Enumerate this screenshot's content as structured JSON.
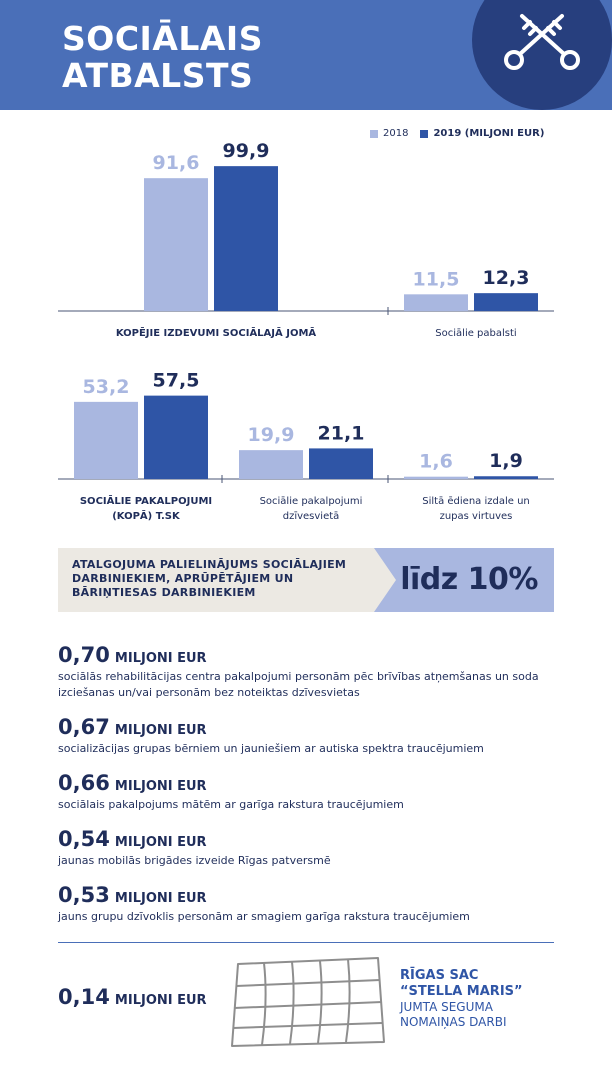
{
  "header": {
    "title_line1": "SOCIĀLAIS",
    "title_line2": "ATBALSTS",
    "logo_icon": "crossed-keys-icon"
  },
  "legend": {
    "series_a": "2018",
    "series_b": "2019 (MILJONI EUR)"
  },
  "colors": {
    "header": "#4a6fb8",
    "logo_circle": "#273f7e",
    "series_2018": "#a9b7e0",
    "series_2019": "#2f55a6",
    "text": "#1f2d5a"
  },
  "chart_data": {
    "type": "bar",
    "series": [
      {
        "name": "2018",
        "values": [
          91.6,
          11.5,
          53.2,
          19.9,
          1.6
        ]
      },
      {
        "name": "2019 (MILJONI EUR)",
        "values": [
          99.9,
          12.3,
          57.5,
          21.1,
          1.9
        ]
      }
    ],
    "categories": [
      "KOPĒJIE IZDEVUMI SOCIĀLAJĀ JOMĀ",
      "Sociālie pabalsti",
      "SOCIĀLIE PAKALPOJUMI (KOPĀ) T.SK",
      "Sociālie pakalpojumi dzīvesvietā",
      "Siltā ēdiena izdale un zupas virtuves"
    ],
    "value_labels_2018": [
      "91,6",
      "11,5",
      "53,2",
      "19,9",
      "1,6"
    ],
    "value_labels_2019": [
      "99,9",
      "12,3",
      "57,5",
      "21,1",
      "1,9"
    ],
    "category_lines": [
      [
        "KOPĒJIE IZDEVUMI SOCIĀLAJĀ JOMĀ"
      ],
      [
        "Sociālie pabalsti"
      ],
      [
        "SOCIĀLIE PAKALPOJUMI",
        "(KOPĀ) T.SK"
      ],
      [
        "Sociālie pakalpojumi",
        "dzīvesvietā"
      ],
      [
        "Siltā ēdiena izdale un",
        "zupas virtuves"
      ]
    ],
    "bold_categories": [
      true,
      false,
      true,
      false,
      false
    ]
  },
  "banner": {
    "text": "ATALGOJUMA PALIELINĀJUMS SOCIĀLAJIEM DARBINIEKIEM, APRŪPĒTĀJIEM UN BĀRIŅTIESAS DARBINIEKIEM",
    "value": "līdz 10%"
  },
  "items": [
    {
      "amount": "0,70",
      "unit": "MILJONI EUR",
      "description": "sociālās rehabilitācijas centra pakalpojumi personām pēc brīvības atņemšanas un soda izciešanas un/vai personām bez noteiktas dzīvesvietas"
    },
    {
      "amount": "0,67",
      "unit": "MILJONI EUR",
      "description": "socializācijas grupas bērniem un jauniešiem ar autiska spektra traucējumiem"
    },
    {
      "amount": "0,66",
      "unit": "MILJONI EUR",
      "description": "sociālais pakalpojums mātēm ar garīga rakstura traucējumiem"
    },
    {
      "amount": "0,54",
      "unit": "MILJONI EUR",
      "description": "jaunas mobilās brigādes izveide Rīgas patversmē"
    },
    {
      "amount": "0,53",
      "unit": "MILJONI EUR",
      "description": "jauns grupu dzīvoklis personām ar smagiem garīga rakstura traucējumiem"
    }
  ],
  "footer": {
    "amount": "0,14",
    "unit": "MILJONI EUR",
    "title_line1": "RĪGAS SAC",
    "title_line2": "“STELLA MARIS”",
    "sub_line1": "JUMTA SEGUMA",
    "sub_line2": "NOMAIŅAS DARBI",
    "icon": "roof-tiles-icon"
  }
}
